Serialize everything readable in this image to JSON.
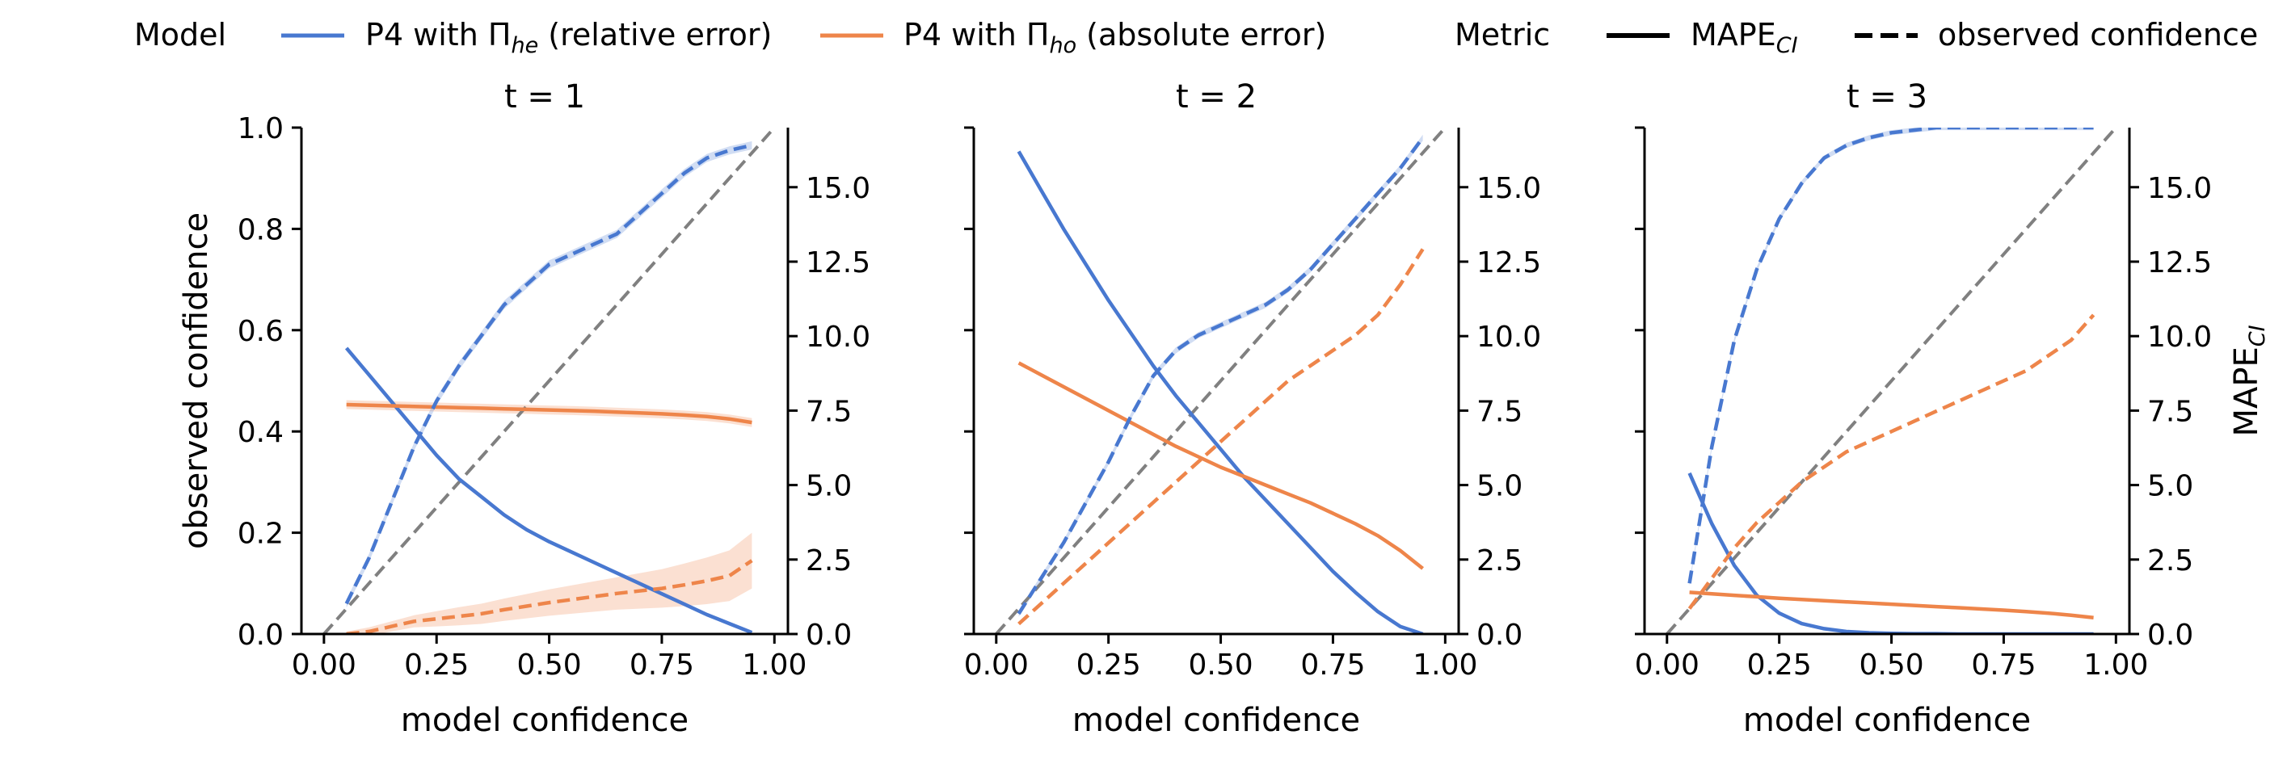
{
  "legend": {
    "model_heading": "Model",
    "metric_heading": "Metric",
    "model_items": [
      {
        "text": "P4 with Π",
        "sub": "he",
        "rest": " (relative error)",
        "color": "#4878d0"
      },
      {
        "text": "P4 with Π",
        "sub": "ho",
        "rest": " (absolute error)",
        "color": "#ee854a"
      }
    ],
    "metric_items": [
      {
        "text": "MAPE",
        "sub": "CI",
        "rest": "",
        "style": "solid"
      },
      {
        "text": "observed confidence",
        "sub": "",
        "rest": "",
        "style": "dashed"
      }
    ]
  },
  "colors": {
    "he": "#4878d0",
    "ho": "#ee854a",
    "diagonal": "#808080"
  },
  "axes_text": {
    "xlabel": "model confidence",
    "ylabel_left": "observed confidence",
    "ylabel_right": "MAPE",
    "ylabel_right_sub": "CI"
  },
  "chart_data": [
    {
      "type": "line",
      "title": "t = 1",
      "xlim": [
        -0.05,
        1.03
      ],
      "ylim_left": [
        0,
        1
      ],
      "ylim_right": [
        0,
        17
      ],
      "xticks": [
        "0.00",
        "0.25",
        "0.50",
        "0.75",
        "1.00"
      ],
      "yticks_left": [
        "0.0",
        "0.2",
        "0.4",
        "0.6",
        "0.8",
        "1.0"
      ],
      "yticks_right": [
        "0.0",
        "2.5",
        "5.0",
        "7.5",
        "10.0",
        "12.5",
        "15.0"
      ],
      "x": [
        0.05,
        0.1,
        0.15,
        0.2,
        0.25,
        0.3,
        0.35,
        0.4,
        0.45,
        0.5,
        0.55,
        0.6,
        0.65,
        0.7,
        0.75,
        0.8,
        0.85,
        0.9,
        0.95
      ],
      "series": [
        {
          "model": "he",
          "metric": "MAPE_CI",
          "axis": "right",
          "values": [
            9.6,
            8.7,
            7.8,
            6.9,
            6.0,
            5.2,
            4.6,
            4.0,
            3.5,
            3.1,
            2.75,
            2.4,
            2.05,
            1.7,
            1.35,
            1.0,
            0.65,
            0.35,
            0.05
          ]
        },
        {
          "model": "ho",
          "metric": "MAPE_CI",
          "axis": "right",
          "band": 0.15,
          "values": [
            7.7,
            7.68,
            7.66,
            7.64,
            7.62,
            7.6,
            7.58,
            7.56,
            7.54,
            7.52,
            7.5,
            7.48,
            7.45,
            7.42,
            7.39,
            7.35,
            7.3,
            7.22,
            7.1
          ]
        },
        {
          "model": "he",
          "metric": "observed confidence",
          "axis": "left",
          "band": 0.008,
          "values": [
            0.06,
            0.15,
            0.26,
            0.37,
            0.46,
            0.53,
            0.59,
            0.65,
            0.69,
            0.73,
            0.75,
            0.77,
            0.79,
            0.83,
            0.87,
            0.91,
            0.94,
            0.955,
            0.965
          ]
        },
        {
          "model": "ho",
          "metric": "observed confidence",
          "axis": "left",
          "band_widths": [
            0.005,
            0.008,
            0.01,
            0.012,
            0.015,
            0.018,
            0.02,
            0.022,
            0.024,
            0.026,
            0.028,
            0.03,
            0.032,
            0.035,
            0.038,
            0.042,
            0.046,
            0.05,
            0.055
          ],
          "values": [
            0.0,
            0.005,
            0.015,
            0.025,
            0.03,
            0.035,
            0.04,
            0.048,
            0.055,
            0.062,
            0.068,
            0.074,
            0.08,
            0.085,
            0.09,
            0.097,
            0.105,
            0.115,
            0.145
          ]
        }
      ]
    },
    {
      "type": "line",
      "title": "t = 2",
      "xlim": [
        -0.05,
        1.03
      ],
      "ylim_left": [
        0,
        1
      ],
      "ylim_right": [
        0,
        17
      ],
      "xticks": [
        "0.00",
        "0.25",
        "0.50",
        "0.75",
        "1.00"
      ],
      "yticks_left": [
        "0.0",
        "0.2",
        "0.4",
        "0.6",
        "0.8",
        "1.0"
      ],
      "yticks_right": [
        "0.0",
        "2.5",
        "5.0",
        "7.5",
        "10.0",
        "12.5",
        "15.0"
      ],
      "x": [
        0.05,
        0.1,
        0.15,
        0.2,
        0.25,
        0.3,
        0.35,
        0.4,
        0.45,
        0.5,
        0.55,
        0.6,
        0.65,
        0.7,
        0.75,
        0.8,
        0.85,
        0.9,
        0.95
      ],
      "series": [
        {
          "model": "he",
          "metric": "MAPE_CI",
          "axis": "right",
          "values": [
            16.2,
            14.9,
            13.6,
            12.4,
            11.2,
            10.1,
            9.0,
            8.0,
            7.1,
            6.2,
            5.3,
            4.5,
            3.7,
            2.9,
            2.1,
            1.4,
            0.75,
            0.25,
            0.0
          ]
        },
        {
          "model": "ho",
          "metric": "MAPE_CI",
          "axis": "right",
          "values": [
            9.1,
            8.7,
            8.3,
            7.9,
            7.5,
            7.1,
            6.7,
            6.3,
            5.95,
            5.6,
            5.3,
            5.0,
            4.7,
            4.4,
            4.05,
            3.7,
            3.3,
            2.8,
            2.2
          ]
        },
        {
          "model": "he",
          "metric": "observed confidence",
          "axis": "left",
          "band": 0.006,
          "values": [
            0.04,
            0.11,
            0.18,
            0.26,
            0.34,
            0.43,
            0.51,
            0.56,
            0.59,
            0.61,
            0.63,
            0.65,
            0.68,
            0.72,
            0.77,
            0.82,
            0.87,
            0.92,
            0.98
          ]
        },
        {
          "model": "ho",
          "metric": "observed confidence",
          "axis": "left",
          "values": [
            0.02,
            0.06,
            0.1,
            0.14,
            0.18,
            0.22,
            0.26,
            0.3,
            0.34,
            0.38,
            0.42,
            0.46,
            0.5,
            0.53,
            0.56,
            0.59,
            0.63,
            0.69,
            0.76
          ]
        }
      ]
    },
    {
      "type": "line",
      "title": "t = 3",
      "xlim": [
        -0.05,
        1.03
      ],
      "ylim_left": [
        0,
        1
      ],
      "ylim_right": [
        0,
        17
      ],
      "xticks": [
        "0.00",
        "0.25",
        "0.50",
        "0.75",
        "1.00"
      ],
      "yticks_left": [
        "0.0",
        "0.2",
        "0.4",
        "0.6",
        "0.8",
        "1.0"
      ],
      "yticks_right": [
        "0.0",
        "2.5",
        "5.0",
        "7.5",
        "10.0",
        "12.5",
        "15.0"
      ],
      "x": [
        0.05,
        0.1,
        0.15,
        0.2,
        0.25,
        0.3,
        0.35,
        0.4,
        0.45,
        0.5,
        0.55,
        0.6,
        0.65,
        0.7,
        0.75,
        0.8,
        0.85,
        0.9,
        0.95
      ],
      "series": [
        {
          "model": "he",
          "metric": "MAPE_CI",
          "axis": "right",
          "values": [
            5.4,
            3.7,
            2.3,
            1.3,
            0.7,
            0.35,
            0.18,
            0.08,
            0.04,
            0.02,
            0.01,
            0.01,
            0.0,
            0.0,
            0.0,
            0.0,
            0.0,
            0.0,
            0.0
          ]
        },
        {
          "model": "ho",
          "metric": "MAPE_CI",
          "axis": "right",
          "values": [
            1.4,
            1.35,
            1.3,
            1.25,
            1.2,
            1.16,
            1.12,
            1.08,
            1.04,
            1.0,
            0.96,
            0.92,
            0.88,
            0.84,
            0.8,
            0.75,
            0.7,
            0.63,
            0.55
          ]
        },
        {
          "model": "he",
          "metric": "observed confidence",
          "axis": "left",
          "band": 0.005,
          "values": [
            0.1,
            0.37,
            0.58,
            0.72,
            0.82,
            0.89,
            0.94,
            0.965,
            0.98,
            0.99,
            0.995,
            1.0,
            1.0,
            1.0,
            1.0,
            1.0,
            1.0,
            1.0,
            1.0
          ]
        },
        {
          "model": "ho",
          "metric": "observed confidence",
          "axis": "left",
          "values": [
            0.05,
            0.11,
            0.17,
            0.22,
            0.26,
            0.3,
            0.33,
            0.36,
            0.38,
            0.4,
            0.42,
            0.44,
            0.46,
            0.48,
            0.5,
            0.52,
            0.55,
            0.58,
            0.63
          ]
        }
      ]
    }
  ]
}
